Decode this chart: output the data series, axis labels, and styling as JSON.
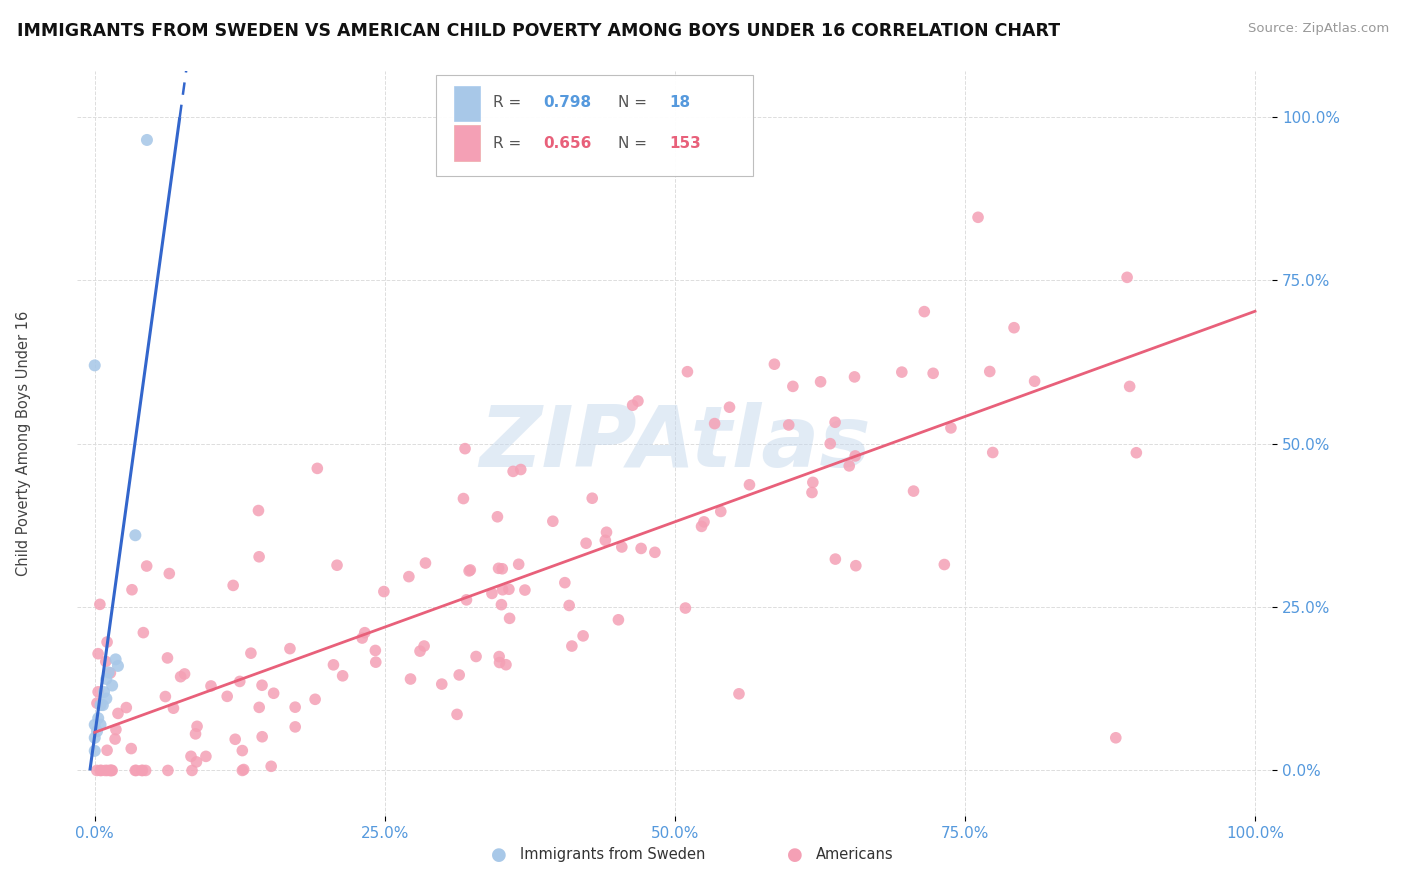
{
  "title": "IMMIGRANTS FROM SWEDEN VS AMERICAN CHILD POVERTY AMONG BOYS UNDER 16 CORRELATION CHART",
  "source": "Source: ZipAtlas.com",
  "ylabel": "Child Poverty Among Boys Under 16",
  "watermark": "ZIPAtlas",
  "series1_color": "#a8c8e8",
  "series2_color": "#f4a0b5",
  "line1_color": "#3366cc",
  "line2_color": "#e8607a",
  "legend_R1": "0.798",
  "legend_N1": "18",
  "legend_R2": "0.656",
  "legend_N2": "153",
  "legend_label1": "Immigrants from Sweden",
  "legend_label2": "Americans",
  "tick_color": "#5599dd",
  "bg_color": "#ffffff",
  "grid_color": "#dddddd"
}
